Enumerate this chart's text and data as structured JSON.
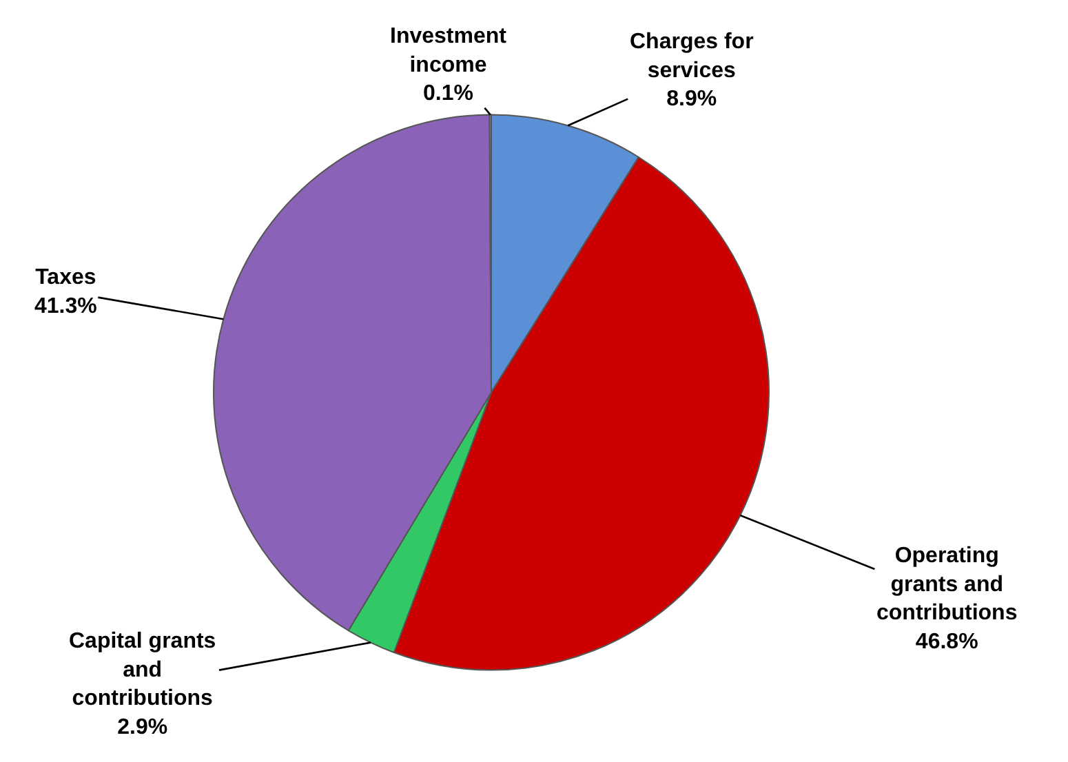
{
  "chart_data": {
    "type": "pie",
    "categories": [
      "Charges for services",
      "Operating grants and contributions",
      "Capital grants and contributions",
      "Taxes",
      "Investment income"
    ],
    "values": [
      8.9,
      46.8,
      2.9,
      41.3,
      0.1
    ],
    "value_labels": [
      "8.9%",
      "46.8%",
      "2.9%",
      "41.3%",
      "0.1%"
    ],
    "colors": [
      "#5b8fd6",
      "#cc0000",
      "#33c866",
      "#8a63b8",
      "#a0a0a0"
    ],
    "legend": false
  }
}
